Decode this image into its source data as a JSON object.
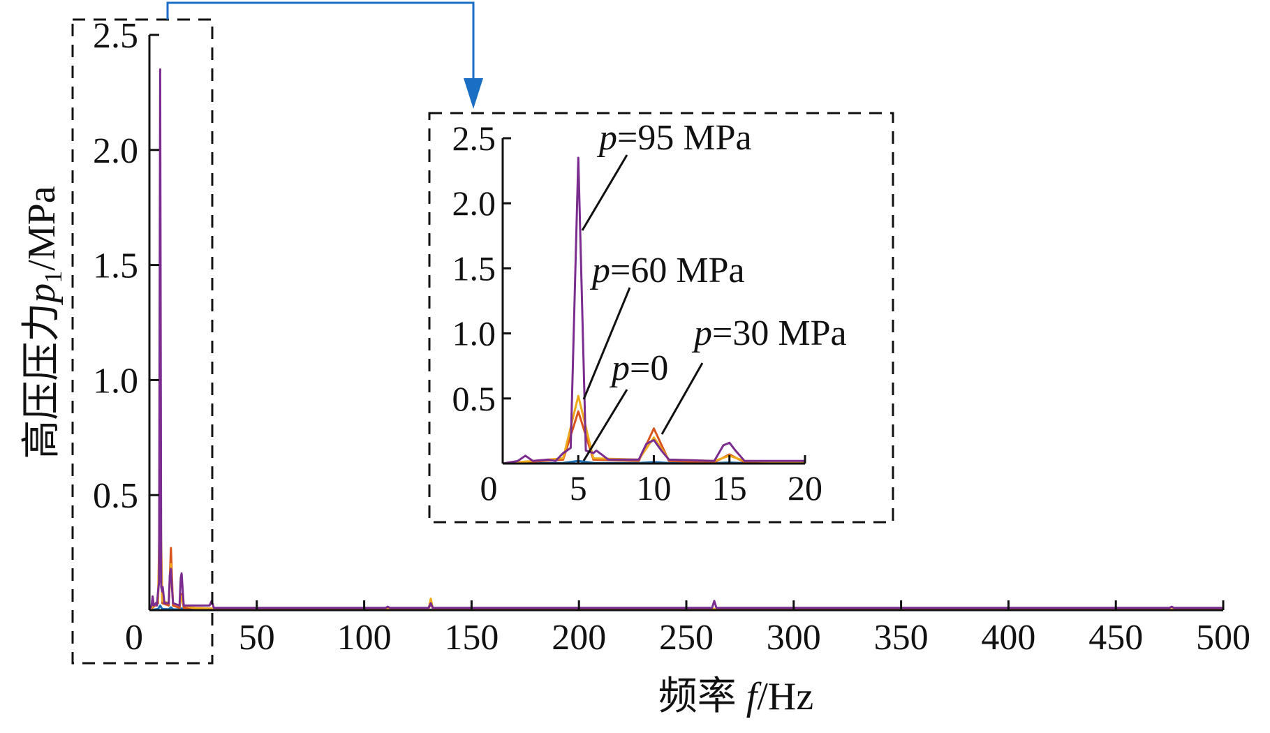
{
  "colors": {
    "axis": "#111111",
    "callout_arrow": "#1a6fc4",
    "series": {
      "p=0": "#1f6fb5",
      "p=30 MPa": "#d9531c",
      "p=60 MPa": "#efaa1c",
      "p=95 MPa": "#7b2c8f"
    }
  },
  "chart_data": [
    {
      "id": "main",
      "type": "line",
      "xlabel_cn": "频率",
      "xlabel_var": "f",
      "xlabel_unit": "/Hz",
      "ylabel_cn": "高压压力",
      "ylabel_var": "p",
      "ylabel_sub": "1",
      "ylabel_unit": "/MPa",
      "xlim": [
        0,
        500
      ],
      "ylim": [
        0,
        2.5
      ],
      "xticks": [
        0,
        50,
        100,
        150,
        200,
        250,
        300,
        350,
        400,
        450,
        500
      ],
      "yticks": [
        "0.5",
        "1.0",
        "1.5",
        "2.0",
        "2.5"
      ],
      "yticks_values": [
        0.5,
        1.0,
        1.5,
        2.0,
        2.5
      ],
      "grid": false,
      "legend": "none",
      "zoom_box_x": [
        0,
        30
      ],
      "series": [
        {
          "name": "p=0",
          "x": [
            0,
            4,
            5,
            6,
            9,
            10,
            11,
            14,
            15,
            16,
            20,
            500
          ],
          "y": [
            0,
            0.005,
            0.02,
            0.005,
            0.004,
            0.012,
            0.004,
            0.003,
            0.008,
            0.003,
            0.002,
            0.002
          ]
        },
        {
          "name": "p=30 MPa",
          "x": [
            0,
            4,
            5,
            6,
            9,
            10,
            11,
            14,
            15,
            16,
            20,
            30,
            130,
            131,
            132,
            500
          ],
          "y": [
            0,
            0.03,
            0.4,
            0.03,
            0.02,
            0.27,
            0.02,
            0.01,
            0.07,
            0.01,
            0.01,
            0.006,
            0.006,
            0.03,
            0.006,
            0.003
          ]
        },
        {
          "name": "p=60 MPa",
          "x": [
            0,
            4,
            5,
            6,
            9,
            10,
            11,
            14,
            15,
            16,
            20,
            30,
            130,
            131,
            132,
            500
          ],
          "y": [
            0,
            0.04,
            0.52,
            0.04,
            0.03,
            0.2,
            0.03,
            0.02,
            0.06,
            0.02,
            0.01,
            0.006,
            0.006,
            0.05,
            0.006,
            0.003
          ]
        },
        {
          "name": "p=95 MPa",
          "x": [
            0,
            1,
            1.5,
            2,
            3,
            3.5,
            4,
            4.5,
            5,
            5.5,
            6,
            6.2,
            7,
            9,
            9.5,
            10,
            10.5,
            11,
            14,
            14.6,
            15,
            15.4,
            16,
            20,
            28,
            29,
            30,
            110,
            111,
            112,
            130,
            131,
            132,
            262,
            263,
            264,
            320,
            475,
            476,
            477,
            500
          ],
          "y": [
            0,
            0.02,
            0.06,
            0.02,
            0.03,
            0.02,
            0.08,
            0.12,
            2.35,
            0.1,
            0.08,
            0.1,
            0.03,
            0.03,
            0.15,
            0.18,
            0.1,
            0.03,
            0.02,
            0.14,
            0.16,
            0.1,
            0.02,
            0.02,
            0.02,
            0.04,
            0.01,
            0.01,
            0.015,
            0.01,
            0.01,
            0.03,
            0.01,
            0.01,
            0.04,
            0.01,
            0.01,
            0.01,
            0.015,
            0.01,
            0.01
          ]
        }
      ]
    },
    {
      "id": "inset",
      "type": "line",
      "xlim": [
        0,
        20
      ],
      "ylim": [
        0,
        2.5
      ],
      "xticks": [
        0,
        5,
        10,
        15,
        20
      ],
      "yticks": [
        "0.5",
        "1.0",
        "1.5",
        "2.0",
        "2.5"
      ],
      "yticks_values": [
        0.5,
        1.0,
        1.5,
        2.0,
        2.5
      ],
      "grid": false,
      "annotations": [
        {
          "var": "p",
          "text": "=95 MPa",
          "points_to_x": 5.0,
          "points_to_y": 1.75
        },
        {
          "var": "p",
          "text": "=60 MPa",
          "points_to_x": 5.0,
          "points_to_y": 0.5
        },
        {
          "var": "p",
          "text": "=0",
          "points_to_x": 5.0,
          "points_to_y": 0.02
        },
        {
          "var": "p",
          "text": "=30 MPa",
          "points_to_x": 10.0,
          "points_to_y": 0.2
        }
      ]
    }
  ]
}
